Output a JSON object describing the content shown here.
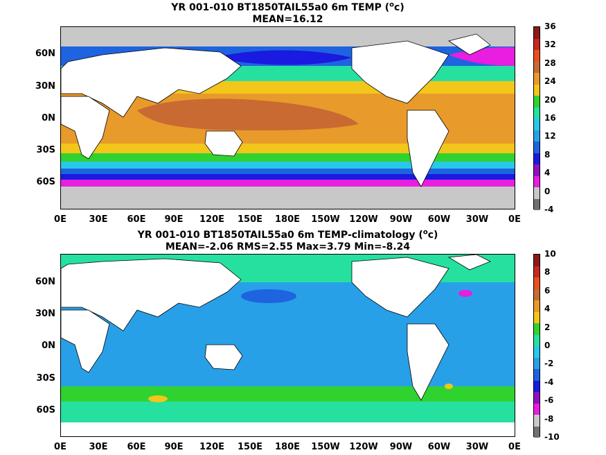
{
  "panel1": {
    "title_pre": "YR 001-010 BT1850TAIL55a0 6m TEMP (",
    "title_sup": "o",
    "title_post": "c)",
    "subtitle": "MEAN=16.12",
    "colorbar_labels": [
      "36",
      "32",
      "28",
      "24",
      "20",
      "16",
      "12",
      "8",
      "4",
      "0",
      "-4"
    ],
    "colors": [
      "#8b1a1a",
      "#c8281e",
      "#e8501c",
      "#c86a32",
      "#e89a2a",
      "#f2c61a",
      "#30d230",
      "#26e0a0",
      "#28c8e8",
      "#28a0e8",
      "#1e64e0",
      "#1a1ae0",
      "#9010c0",
      "#e81ee0",
      "#c8c8c8",
      "#707070"
    ]
  },
  "panel2": {
    "title_pre": "YR 001-010 BT1850TAIL55a0 6m TEMP-climatology (",
    "title_sup": "o",
    "title_post": "c)",
    "subtitle": "MEAN=-2.06   RMS=2.55   Max=3.79   Min=-8.24",
    "colorbar_labels": [
      "10",
      "8",
      "6",
      "4",
      "2",
      "0",
      "-2",
      "-4",
      "-6",
      "-8",
      "-10"
    ],
    "colors": [
      "#8b1a1a",
      "#c8281e",
      "#e8501c",
      "#c86a32",
      "#e89a2a",
      "#f2c61a",
      "#30d230",
      "#26e0a0",
      "#28c8e8",
      "#28a0e8",
      "#1e64e0",
      "#1a1ae0",
      "#9010c0",
      "#e81ee0",
      "#c8c8c8",
      "#707070"
    ]
  },
  "lat_labels": [
    "60N",
    "30N",
    "0N",
    "30S",
    "60S"
  ],
  "lon_labels": [
    "0E",
    "30E",
    "60E",
    "90E",
    "120E",
    "150E",
    "180E",
    "150W",
    "120W",
    "90W",
    "60W",
    "30W",
    "0E"
  ]
}
